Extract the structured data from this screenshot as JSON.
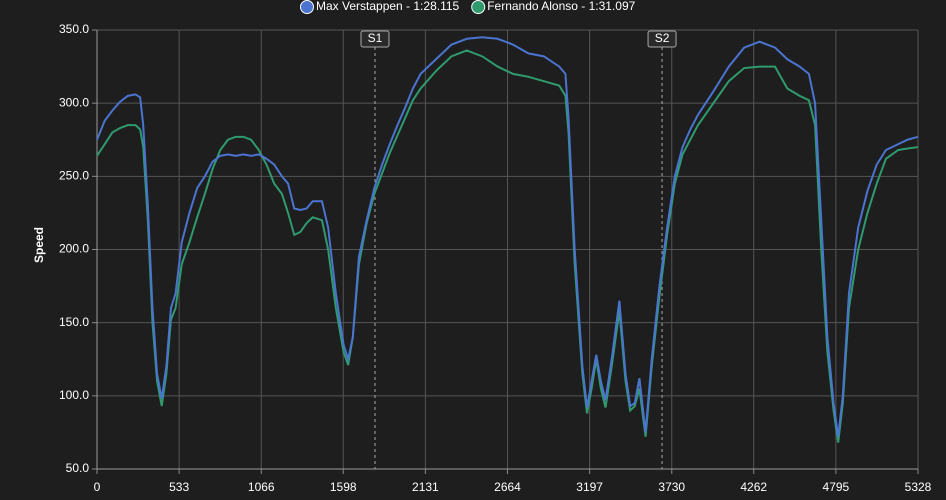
{
  "chart_data": {
    "type": "line",
    "y_label": "Speed",
    "x": [
      0,
      50,
      100,
      150,
      200,
      250,
      280,
      300,
      330,
      360,
      390,
      420,
      450,
      480,
      510,
      550,
      600,
      650,
      700,
      750,
      800,
      850,
      900,
      950,
      1000,
      1050,
      1100,
      1150,
      1200,
      1240,
      1280,
      1320,
      1360,
      1400,
      1460,
      1500,
      1550,
      1600,
      1630,
      1660,
      1700,
      1750,
      1800,
      1850,
      1900,
      1950,
      2000,
      2050,
      2100,
      2200,
      2300,
      2400,
      2500,
      2600,
      2700,
      2800,
      2900,
      3000,
      3040,
      3060,
      3100,
      3150,
      3180,
      3210,
      3240,
      3270,
      3300,
      3340,
      3390,
      3430,
      3460,
      3490,
      3520,
      3560,
      3600,
      3650,
      3700,
      3750,
      3800,
      3850,
      3900,
      4000,
      4100,
      4200,
      4300,
      4400,
      4480,
      4560,
      4620,
      4660,
      4700,
      4740,
      4780,
      4810,
      4840,
      4880,
      4940,
      5000,
      5060,
      5120,
      5200,
      5260,
      5328
    ],
    "series": [
      {
        "name": "Max Verstappen - 1:28.115",
        "color": "#4a74d0",
        "values": [
          275,
          288,
          295,
          301,
          305,
          306,
          304,
          285,
          230,
          160,
          115,
          98,
          120,
          160,
          170,
          205,
          225,
          242,
          250,
          260,
          264,
          265,
          264,
          265,
          264,
          265,
          262,
          258,
          250,
          245,
          228,
          227,
          228,
          233,
          233,
          215,
          170,
          135,
          125,
          140,
          195,
          220,
          242,
          258,
          272,
          285,
          297,
          310,
          320,
          330,
          340,
          344,
          345,
          344,
          340,
          334,
          332,
          325,
          320,
          290,
          200,
          120,
          92,
          110,
          128,
          110,
          97,
          125,
          165,
          115,
          93,
          95,
          112,
          75,
          125,
          175,
          215,
          250,
          270,
          282,
          292,
          308,
          325,
          338,
          342,
          338,
          330,
          325,
          320,
          300,
          220,
          140,
          95,
          72,
          100,
          170,
          215,
          240,
          258,
          268,
          272,
          275,
          277
        ]
      },
      {
        "name": "Fernando Alonso - 1:31.097",
        "color": "#2e9a6e",
        "values": [
          264,
          272,
          280,
          283,
          285,
          285,
          282,
          270,
          220,
          150,
          110,
          93,
          115,
          152,
          160,
          190,
          205,
          222,
          238,
          255,
          268,
          275,
          277,
          277,
          275,
          268,
          258,
          245,
          238,
          225,
          210,
          212,
          218,
          222,
          220,
          200,
          160,
          130,
          121,
          140,
          190,
          218,
          238,
          252,
          266,
          278,
          290,
          302,
          310,
          322,
          332,
          336,
          332,
          325,
          320,
          318,
          315,
          312,
          305,
          280,
          190,
          115,
          88,
          105,
          125,
          105,
          92,
          120,
          158,
          110,
          90,
          93,
          105,
          72,
          120,
          168,
          210,
          245,
          265,
          275,
          285,
          300,
          315,
          324,
          325,
          325,
          310,
          305,
          302,
          285,
          200,
          130,
          90,
          68,
          95,
          160,
          200,
          225,
          245,
          262,
          268,
          269,
          270
        ]
      }
    ],
    "xlim": [
      0,
      5328
    ],
    "xticks": [
      0,
      533,
      1066,
      1598,
      2131,
      2664,
      3197,
      3730,
      4262,
      4795,
      5328
    ],
    "ylim": [
      50,
      350
    ],
    "yticks": [
      {
        "value": 50,
        "label": "50.0"
      },
      {
        "value": 100,
        "label": "100.0"
      },
      {
        "value": 150,
        "label": "150.0"
      },
      {
        "value": 200,
        "label": "200.0"
      },
      {
        "value": 250,
        "label": "250.0"
      },
      {
        "value": 300,
        "label": "300.0"
      },
      {
        "value": 350,
        "label": "350.0"
      }
    ],
    "annotations": [
      {
        "x": 1804,
        "label": "S1"
      },
      {
        "x": 3667,
        "label": "S2"
      }
    ],
    "grid": true
  }
}
